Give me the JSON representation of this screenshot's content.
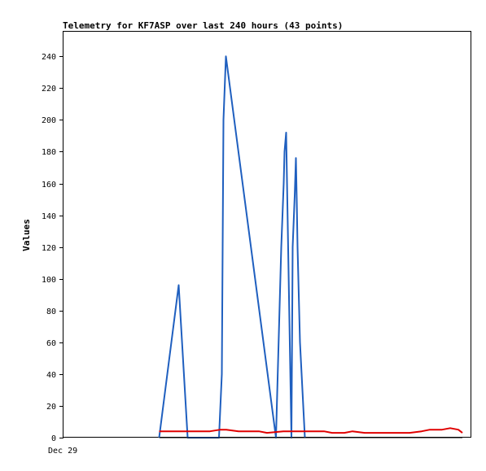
{
  "chart_data": {
    "type": "line",
    "title": "Telemetry for KF7ASP over last 240 hours (43 points)",
    "xlabel": "",
    "ylabel": "Values",
    "x_tick_labels": [
      "Dec 29"
    ],
    "ylim": [
      0,
      256
    ],
    "yticks": [
      0,
      20,
      40,
      60,
      80,
      100,
      120,
      140,
      160,
      180,
      200,
      220,
      240
    ],
    "xlim": [
      0,
      1
    ],
    "grid": false,
    "legend": "none",
    "series": [
      {
        "color": "#1f5fbf",
        "x": [
          0.235,
          0.283,
          0.305,
          0.382,
          0.389,
          0.391,
          0.393,
          0.399,
          0.522,
          0.535,
          0.541,
          0.543,
          0.547,
          0.56,
          0.563,
          0.568,
          0.571,
          0.573,
          0.575,
          0.581,
          0.593
        ],
        "y": [
          0,
          96,
          0,
          0,
          40,
          120,
          200,
          240,
          0,
          120,
          160,
          180,
          192,
          0,
          120,
          152,
          176,
          150,
          120,
          60,
          0
        ]
      },
      {
        "color": "#e00000",
        "x": [
          0.235,
          0.3,
          0.36,
          0.385,
          0.4,
          0.43,
          0.48,
          0.5,
          0.54,
          0.6,
          0.64,
          0.66,
          0.69,
          0.71,
          0.74,
          0.78,
          0.82,
          0.85,
          0.88,
          0.9,
          0.93,
          0.95,
          0.97,
          0.98
        ],
        "y": [
          4,
          4,
          4,
          5,
          5,
          4,
          4,
          3,
          4,
          4,
          4,
          3,
          3,
          4,
          3,
          3,
          3,
          3,
          4,
          5,
          5,
          6,
          5,
          3
        ]
      },
      {
        "color": "#000000",
        "x": [
          0.235,
          0.98
        ],
        "y": [
          0,
          0
        ]
      }
    ]
  }
}
